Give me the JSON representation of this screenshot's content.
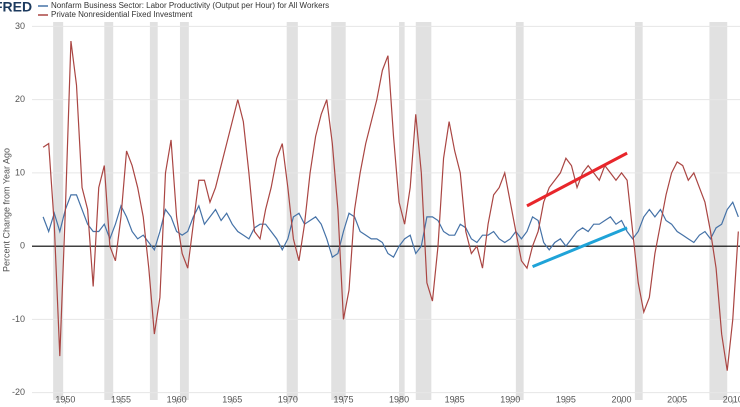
{
  "chart_data": {
    "type": "line",
    "logo": "FRED",
    "y_label": "Percent Change from Year Ago",
    "x": [
      1948,
      1948.5,
      1949,
      1949.5,
      1950,
      1950.5,
      1951,
      1951.5,
      1952,
      1952.5,
      1953,
      1953.5,
      1954,
      1954.5,
      1955,
      1955.5,
      1956,
      1956.5,
      1957,
      1957.5,
      1958,
      1958.5,
      1959,
      1959.5,
      1960,
      1960.5,
      1961,
      1961.5,
      1962,
      1962.5,
      1963,
      1963.5,
      1964,
      1964.5,
      1965,
      1965.5,
      1966,
      1966.5,
      1967,
      1967.5,
      1968,
      1968.5,
      1969,
      1969.5,
      1970,
      1970.5,
      1971,
      1971.5,
      1972,
      1972.5,
      1973,
      1973.5,
      1974,
      1974.5,
      1975,
      1975.5,
      1976,
      1976.5,
      1977,
      1977.5,
      1978,
      1978.5,
      1979,
      1979.5,
      1980,
      1980.5,
      1981,
      1981.5,
      1982,
      1982.5,
      1983,
      1983.5,
      1984,
      1984.5,
      1985,
      1985.5,
      1986,
      1986.5,
      1987,
      1987.5,
      1988,
      1988.5,
      1989,
      1989.5,
      1990,
      1990.5,
      1991,
      1991.5,
      1992,
      1992.5,
      1993,
      1993.5,
      1994,
      1994.5,
      1995,
      1995.5,
      1996,
      1996.5,
      1997,
      1997.5,
      1998,
      1998.5,
      1999,
      1999.5,
      2000,
      2000.5,
      2001,
      2001.5,
      2002,
      2002.5,
      2003,
      2003.5,
      2004,
      2004.5,
      2005,
      2005.5,
      2006,
      2006.5,
      2007,
      2007.5,
      2008,
      2008.5,
      2009,
      2009.5,
      2010,
      2010.5
    ],
    "series": [
      {
        "name": "Nonfarm Business Sector: Labor Productivity (Output per Hour) for All Workers",
        "color": "#4572a7",
        "values": [
          4,
          2,
          4.5,
          2,
          5,
          7,
          7,
          5,
          3,
          2,
          2,
          3,
          1,
          3,
          5.5,
          4,
          2,
          1,
          1.5,
          0.5,
          -0.5,
          2,
          5,
          4,
          2,
          1.5,
          2,
          4,
          5.5,
          3,
          4,
          5,
          3.5,
          4.5,
          3,
          2,
          1.5,
          1,
          2.5,
          3,
          3,
          2,
          1,
          -0.5,
          1,
          4,
          4.5,
          3,
          3.5,
          4,
          3,
          1,
          -1.5,
          -1,
          2,
          4.5,
          4,
          2,
          1.5,
          1,
          1,
          0.5,
          -1,
          -1.5,
          0,
          1,
          1.5,
          -1,
          0,
          4,
          4,
          3.5,
          2,
          1.5,
          1.5,
          3,
          2.5,
          1,
          0.5,
          1.5,
          1.5,
          2,
          1,
          0.5,
          1,
          2,
          1,
          2,
          4,
          3.5,
          0.5,
          -0.5,
          0.5,
          1,
          0,
          1,
          2,
          2.5,
          2,
          3,
          3,
          3.5,
          4,
          3,
          3.5,
          2,
          1,
          2,
          4,
          5,
          4,
          5,
          3.5,
          3,
          2,
          1.5,
          1,
          0.5,
          1.5,
          2,
          1,
          2.5,
          3,
          5,
          6,
          4
        ]
      },
      {
        "name": "Private Nonresidential Fixed Investment",
        "color": "#aa4643",
        "values": [
          13.5,
          14,
          3,
          -15,
          5,
          28,
          22,
          8,
          5,
          -5.5,
          8,
          11,
          0,
          -2,
          4,
          13,
          11,
          8,
          4,
          -3,
          -12,
          -7,
          10,
          14.5,
          4,
          -1,
          -3,
          3,
          9,
          9,
          6,
          8,
          11,
          14,
          17,
          20,
          17,
          10,
          2,
          1,
          5,
          8,
          12,
          14,
          8,
          1,
          -2,
          3,
          10,
          15,
          18,
          20,
          14,
          5,
          -10,
          -6,
          5,
          10,
          14,
          17,
          20,
          24,
          26,
          15,
          6,
          3,
          8,
          18,
          10,
          -5,
          -7.5,
          0,
          12,
          17,
          13,
          10,
          2,
          -1,
          0,
          -3,
          3,
          7,
          8,
          10,
          6,
          2,
          -2,
          -3,
          0,
          2,
          6,
          8,
          9,
          10,
          12,
          11,
          8,
          10,
          11,
          10,
          9,
          11,
          10,
          9,
          10,
          9,
          2,
          -5,
          -9,
          -7,
          -1,
          3,
          7,
          10,
          11.5,
          11,
          9,
          10,
          8,
          6,
          2,
          -3,
          -12,
          -17,
          -10,
          2
        ]
      }
    ],
    "recessions": [
      [
        1948.9,
        1949.8
      ],
      [
        1953.5,
        1954.3
      ],
      [
        1957.6,
        1958.3
      ],
      [
        1960.3,
        1961.1
      ],
      [
        1969.9,
        1970.9
      ],
      [
        1973.9,
        1975.2
      ],
      [
        1980.0,
        1980.5
      ],
      [
        1981.5,
        1982.9
      ],
      [
        1990.5,
        1991.2
      ],
      [
        2001.2,
        2001.9
      ],
      [
        2007.9,
        2009.5
      ]
    ],
    "annotations": [
      {
        "color": "#e8262b",
        "x": [
          1991.5,
          2000.5
        ],
        "y": [
          5.5,
          12.7
        ]
      },
      {
        "color": "#1fa3d8",
        "x": [
          1992,
          2000.5
        ],
        "y": [
          -2.8,
          2.5
        ]
      }
    ],
    "xlim": [
      1947,
      2010.65
    ],
    "ylim": [
      -21,
      30.6
    ],
    "xticks": [
      1950,
      1955,
      1960,
      1965,
      1970,
      1975,
      1980,
      1985,
      1990,
      1995,
      2000,
      2005,
      2010
    ],
    "yticks": [
      -20,
      -10,
      0,
      10,
      20,
      30
    ],
    "grid": true
  }
}
